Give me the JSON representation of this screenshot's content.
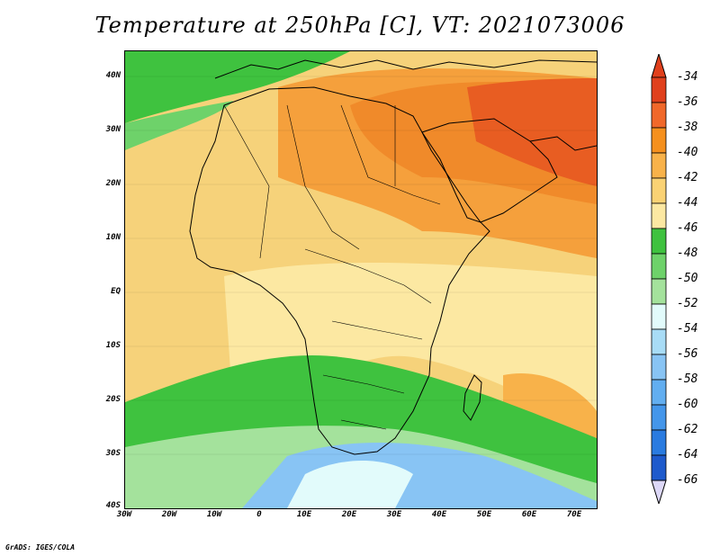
{
  "title": "Temperature at 250hPa [C], VT: 2021073006",
  "footer": "GrADS: IGES/COLA",
  "map": {
    "lat_labels": [
      "40N",
      "30N",
      "20N",
      "10N",
      "EQ",
      "10S",
      "20S",
      "30S",
      "40S"
    ],
    "lon_labels": [
      "30W",
      "20W",
      "10W",
      "0",
      "10E",
      "20E",
      "30E",
      "40E",
      "50E",
      "60E",
      "70E"
    ]
  },
  "colorbar": {
    "labels": [
      "-34",
      "-36",
      "-38",
      "-40",
      "-42",
      "-44",
      "-46",
      "-48",
      "-50",
      "-52",
      "-54",
      "-56",
      "-58",
      "-60",
      "-62",
      "-64",
      "-66"
    ],
    "colors": [
      "#e0401c",
      "#f0682a",
      "#f5901e",
      "#f8b24a",
      "#fad274",
      "#fce8a2",
      "#3fc23f",
      "#6ed26a",
      "#a4e29c",
      "#e2fbfb",
      "#a8dcf6",
      "#88c4f4",
      "#62aef0",
      "#4496ea",
      "#2a7be0",
      "#1e5acc",
      "#101878"
    ],
    "top_color": "#e0401c",
    "bottom_color": "#ddd8f8"
  }
}
